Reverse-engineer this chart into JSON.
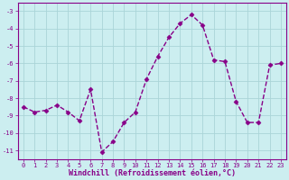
{
  "x": [
    0,
    1,
    2,
    3,
    4,
    5,
    6,
    7,
    8,
    9,
    10,
    11,
    12,
    13,
    14,
    15,
    16,
    17,
    18,
    19,
    20,
    21,
    22,
    23
  ],
  "y": [
    -8.5,
    -8.8,
    -8.7,
    -8.4,
    -8.8,
    -9.3,
    -7.5,
    -11.1,
    -10.5,
    -9.4,
    -8.8,
    -6.9,
    -5.6,
    -4.5,
    -3.7,
    -3.2,
    -3.8,
    -5.8,
    -5.9,
    -8.2,
    -9.4,
    -9.4,
    -6.1,
    -6.0
  ],
  "line_color": "#880088",
  "marker": "D",
  "markersize": 2.5,
  "linewidth": 1.0,
  "bg_color": "#cceef0",
  "grid_color": "#aad4d8",
  "xlabel": "Windchill (Refroidissement éolien,°C)",
  "xlabel_color": "#880088",
  "tick_color": "#880088",
  "yticks": [
    -11,
    -10,
    -9,
    -8,
    -7,
    -6,
    -5,
    -4,
    -3
  ],
  "xticks": [
    0,
    1,
    2,
    3,
    4,
    5,
    6,
    7,
    8,
    9,
    10,
    11,
    12,
    13,
    14,
    15,
    16,
    17,
    18,
    19,
    20,
    21,
    22,
    23
  ],
  "xlim": [
    -0.5,
    23.5
  ],
  "ylim": [
    -11.5,
    -2.5
  ],
  "axis_color": "#880088",
  "font_family": "monospace",
  "tick_fontsize": 5.0,
  "xlabel_fontsize": 6.0,
  "xlabel_fontweight": "bold"
}
